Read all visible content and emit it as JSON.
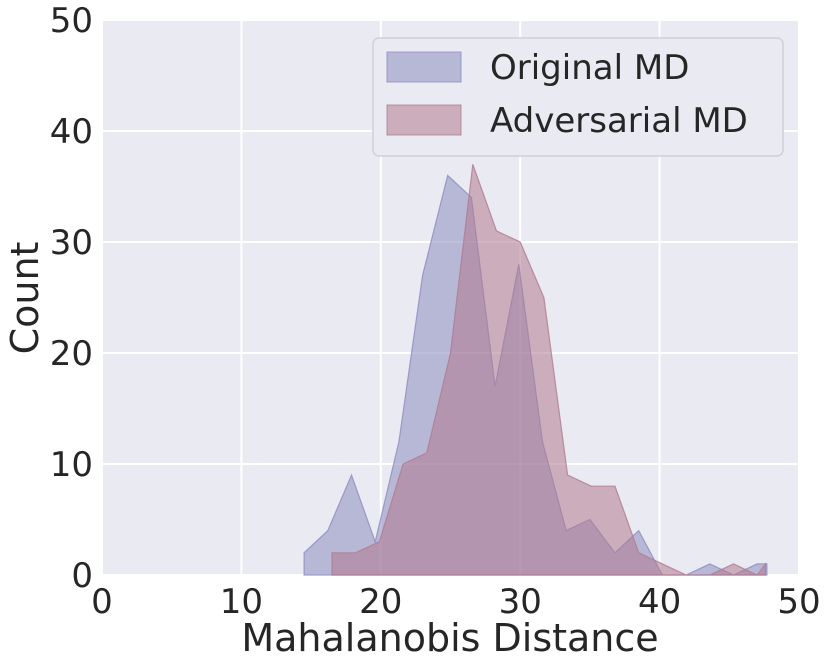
{
  "chart_data": {
    "type": "area",
    "xlabel": "Mahalanobis Distance",
    "ylabel": "Count",
    "xlim": [
      0,
      50
    ],
    "ylim": [
      0,
      50
    ],
    "xticks": [
      "0",
      "10",
      "20",
      "30",
      "40",
      "50"
    ],
    "yticks": [
      "0",
      "10",
      "20",
      "30",
      "40",
      "50"
    ],
    "grid": true,
    "legend_position": "top-right",
    "series": [
      {
        "name": "Original MD",
        "color": "#8c8cc0",
        "opacity": 0.55,
        "points": [
          [
            14.5,
            0
          ],
          [
            14.5,
            2
          ],
          [
            16.2,
            4
          ],
          [
            17.9,
            9
          ],
          [
            19.6,
            3
          ],
          [
            21.3,
            12
          ],
          [
            23.0,
            27
          ],
          [
            24.8,
            36
          ],
          [
            26.5,
            34
          ],
          [
            28.2,
            17
          ],
          [
            29.9,
            28
          ],
          [
            31.6,
            12
          ],
          [
            33.3,
            4
          ],
          [
            35.0,
            5
          ],
          [
            36.8,
            2
          ],
          [
            38.5,
            4
          ],
          [
            40.2,
            0
          ],
          [
            41.9,
            0
          ],
          [
            43.6,
            1
          ],
          [
            45.3,
            0
          ],
          [
            47.0,
            1
          ],
          [
            47.7,
            1
          ],
          [
            47.7,
            0
          ]
        ]
      },
      {
        "name": "Adversarial MD",
        "color": "#b07a90",
        "opacity": 0.55,
        "points": [
          [
            16.5,
            0
          ],
          [
            16.5,
            2
          ],
          [
            18.2,
            2
          ],
          [
            19.9,
            3
          ],
          [
            21.6,
            10
          ],
          [
            23.3,
            11
          ],
          [
            25.0,
            20
          ],
          [
            26.6,
            37
          ],
          [
            28.3,
            31
          ],
          [
            30.0,
            30
          ],
          [
            31.7,
            25
          ],
          [
            33.4,
            9
          ],
          [
            35.1,
            8
          ],
          [
            36.8,
            8
          ],
          [
            38.5,
            2
          ],
          [
            40.2,
            1
          ],
          [
            41.9,
            0
          ],
          [
            43.6,
            0
          ],
          [
            45.3,
            1
          ],
          [
            47.0,
            0
          ],
          [
            47.6,
            1
          ],
          [
            47.6,
            0
          ]
        ]
      }
    ]
  }
}
